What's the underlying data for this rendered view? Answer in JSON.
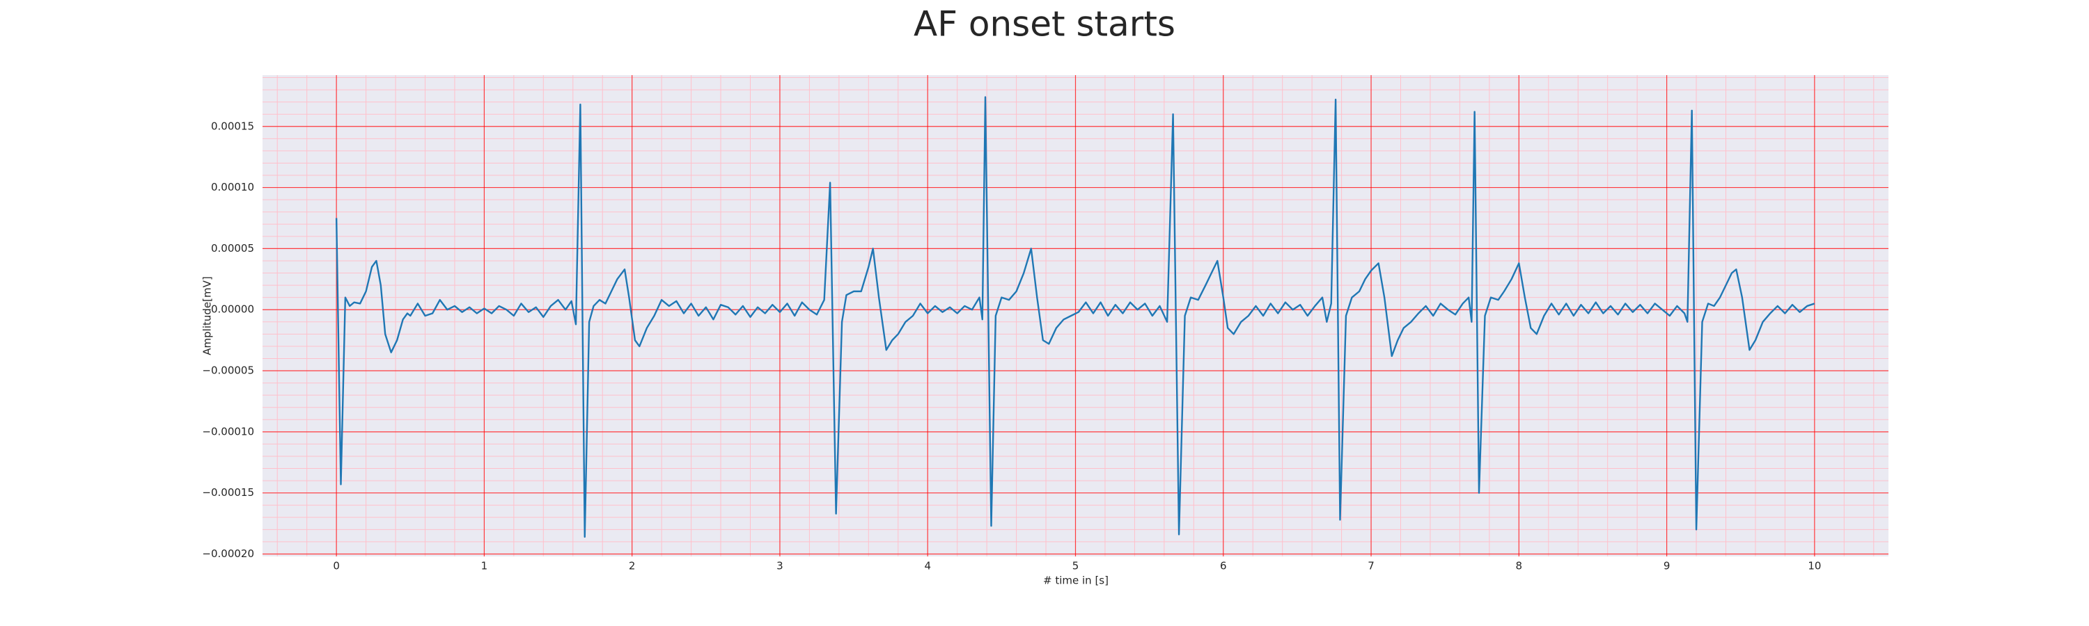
{
  "chart_data": {
    "type": "line",
    "title": "AF onset starts",
    "xlabel": "# time in [s]",
    "ylabel": "Amplitude[mV]",
    "color": "#1f77b4",
    "grid": true,
    "minor_grid": true,
    "xlim": [
      -0.5,
      10.5
    ],
    "xticks": [
      0,
      1,
      2,
      3,
      4,
      5,
      6,
      7,
      8,
      9,
      10
    ],
    "ylim": [
      -0.000202,
      0.000192
    ],
    "yticks": [
      {
        "value": -0.0002,
        "label": "−0.00020"
      },
      {
        "value": -0.00015,
        "label": "−0.00015"
      },
      {
        "value": -0.0001,
        "label": "−0.00010"
      },
      {
        "value": -5e-05,
        "label": "−0.00005"
      },
      {
        "value": 0,
        "label": "0.00000"
      },
      5e-05,
      {
        "value": 0.0001,
        "label": "0.00010"
      },
      0.00015
    ],
    "x": [
      0,
      0.03,
      0.06,
      0.09,
      0.12,
      0.16,
      0.2,
      0.24,
      0.27,
      0.3,
      0.33,
      0.37,
      0.41,
      0.45,
      0.48,
      0.5,
      0.55,
      0.6,
      0.65,
      0.7,
      0.75,
      0.8,
      0.85,
      0.9,
      0.95,
      1.0,
      1.05,
      1.1,
      1.15,
      1.2,
      1.25,
      1.3,
      1.35,
      1.4,
      1.45,
      1.5,
      1.55,
      1.59,
      1.62,
      1.65,
      1.68,
      1.71,
      1.74,
      1.78,
      1.82,
      1.86,
      1.9,
      1.95,
      1.98,
      2.02,
      2.05,
      2.1,
      2.15,
      2.2,
      2.25,
      2.3,
      2.35,
      2.4,
      2.45,
      2.5,
      2.55,
      2.6,
      2.65,
      2.7,
      2.75,
      2.8,
      2.85,
      2.9,
      2.95,
      3.0,
      3.05,
      3.1,
      3.15,
      3.2,
      3.25,
      3.3,
      3.34,
      3.38,
      3.42,
      3.45,
      3.5,
      3.55,
      3.6,
      3.63,
      3.67,
      3.72,
      3.76,
      3.8,
      3.85,
      3.9,
      3.95,
      4.0,
      4.05,
      4.1,
      4.15,
      4.2,
      4.25,
      4.3,
      4.35,
      4.37,
      4.39,
      4.43,
      4.46,
      4.5,
      4.55,
      4.6,
      4.65,
      4.7,
      4.74,
      4.78,
      4.82,
      4.87,
      4.92,
      4.97,
      5.02,
      5.07,
      5.12,
      5.17,
      5.22,
      5.27,
      5.32,
      5.37,
      5.42,
      5.47,
      5.52,
      5.57,
      5.62,
      5.66,
      5.7,
      5.74,
      5.78,
      5.83,
      5.88,
      5.92,
      5.96,
      6.0,
      6.03,
      6.07,
      6.12,
      6.17,
      6.22,
      6.27,
      6.32,
      6.37,
      6.42,
      6.47,
      6.52,
      6.57,
      6.62,
      6.67,
      6.7,
      6.73,
      6.76,
      6.79,
      6.83,
      6.87,
      6.92,
      6.96,
      7.0,
      7.05,
      7.09,
      7.14,
      7.18,
      7.22,
      7.27,
      7.32,
      7.37,
      7.42,
      7.47,
      7.52,
      7.57,
      7.62,
      7.66,
      7.68,
      7.7,
      7.73,
      7.77,
      7.81,
      7.86,
      7.9,
      7.95,
      8.0,
      8.04,
      8.08,
      8.12,
      8.17,
      8.22,
      8.27,
      8.32,
      8.37,
      8.42,
      8.47,
      8.52,
      8.57,
      8.62,
      8.67,
      8.72,
      8.77,
      8.82,
      8.87,
      8.92,
      8.97,
      9.02,
      9.07,
      9.12,
      9.14,
      9.17,
      9.2,
      9.24,
      9.28,
      9.32,
      9.36,
      9.4,
      9.44,
      9.47,
      9.51,
      9.56,
      9.6,
      9.65,
      9.7,
      9.75,
      9.8,
      9.85,
      9.9,
      9.95,
      10.0
    ],
    "values": [
      7.5e-05,
      -0.000143,
      1e-05,
      3e-06,
      6e-06,
      5e-06,
      1.5e-05,
      3.5e-05,
      4e-05,
      2e-05,
      -2e-05,
      -3.5e-05,
      -2.5e-05,
      -8e-06,
      -3e-06,
      -5e-06,
      5e-06,
      -5e-06,
      -3e-06,
      8e-06,
      0,
      3e-06,
      -2e-06,
      2e-06,
      -3e-06,
      1e-06,
      -3e-06,
      3e-06,
      0,
      -5e-06,
      5e-06,
      -2e-06,
      2e-06,
      -6e-06,
      3e-06,
      8e-06,
      0,
      7e-06,
      -1.2e-05,
      0.000168,
      -0.000186,
      -1e-05,
      3e-06,
      8e-06,
      5e-06,
      1.5e-05,
      2.5e-05,
      3.3e-05,
      1e-05,
      -2.5e-05,
      -3e-05,
      -1.5e-05,
      -5e-06,
      8e-06,
      3e-06,
      7e-06,
      -3e-06,
      5e-06,
      -5e-06,
      2e-06,
      -8e-06,
      4e-06,
      2e-06,
      -4e-06,
      3e-06,
      -6e-06,
      2e-06,
      -3e-06,
      4e-06,
      -2e-06,
      5e-06,
      -5e-06,
      6e-06,
      0,
      -4e-06,
      8e-06,
      0.000104,
      -0.000167,
      -1e-05,
      1.2e-05,
      1.5e-05,
      1.5e-05,
      3.5e-05,
      5e-05,
      1e-05,
      -3.3e-05,
      -2.5e-05,
      -2e-05,
      -1e-05,
      -5e-06,
      5e-06,
      -3e-06,
      3e-06,
      -2e-06,
      2e-06,
      -3e-06,
      3e-06,
      0,
      1e-05,
      -8e-06,
      0.000174,
      -0.000177,
      -5e-06,
      1e-05,
      8e-06,
      1.5e-05,
      3e-05,
      5e-05,
      1e-05,
      -2.5e-05,
      -2.8e-05,
      -1.5e-05,
      -8e-06,
      -5e-06,
      -2e-06,
      6e-06,
      -3e-06,
      6e-06,
      -5e-06,
      4e-06,
      -3e-06,
      6e-06,
      0,
      5e-06,
      -5e-06,
      3e-06,
      -1e-05,
      0.00016,
      -0.000184,
      -5e-06,
      1e-05,
      8e-06,
      2e-05,
      3e-05,
      4e-05,
      1e-05,
      -1.5e-05,
      -2e-05,
      -1e-05,
      -5e-06,
      3e-06,
      -5e-06,
      5e-06,
      -3e-06,
      6e-06,
      0,
      4e-06,
      -5e-06,
      3e-06,
      1e-05,
      -1e-05,
      5e-06,
      0.000172,
      -0.000172,
      -5e-06,
      1e-05,
      1.5e-05,
      2.5e-05,
      3.2e-05,
      3.8e-05,
      1e-05,
      -3.8e-05,
      -2.5e-05,
      -1.5e-05,
      -1e-05,
      -3e-06,
      3e-06,
      -5e-06,
      5e-06,
      0,
      -4e-06,
      5e-06,
      1e-05,
      -1e-05,
      0.000162,
      -0.00015,
      -5e-06,
      1e-05,
      8e-06,
      1.5e-05,
      2.5e-05,
      3.8e-05,
      1e-05,
      -1.5e-05,
      -2e-05,
      -5e-06,
      5e-06,
      -4e-06,
      5e-06,
      -5e-06,
      4e-06,
      -3e-06,
      6e-06,
      -3e-06,
      3e-06,
      -4e-06,
      5e-06,
      -2e-06,
      4e-06,
      -3e-06,
      5e-06,
      0,
      -5e-06,
      3e-06,
      -3e-06,
      -1e-05,
      0.000163,
      -0.00018,
      -1e-05,
      5e-06,
      3e-06,
      1e-05,
      2e-05,
      3e-05,
      3.3e-05,
      1e-05,
      -3.3e-05,
      -2.5e-05,
      -1e-05,
      -3e-06,
      3e-06,
      -3e-06,
      4e-06,
      -2e-06,
      3e-06,
      5e-06
    ]
  }
}
